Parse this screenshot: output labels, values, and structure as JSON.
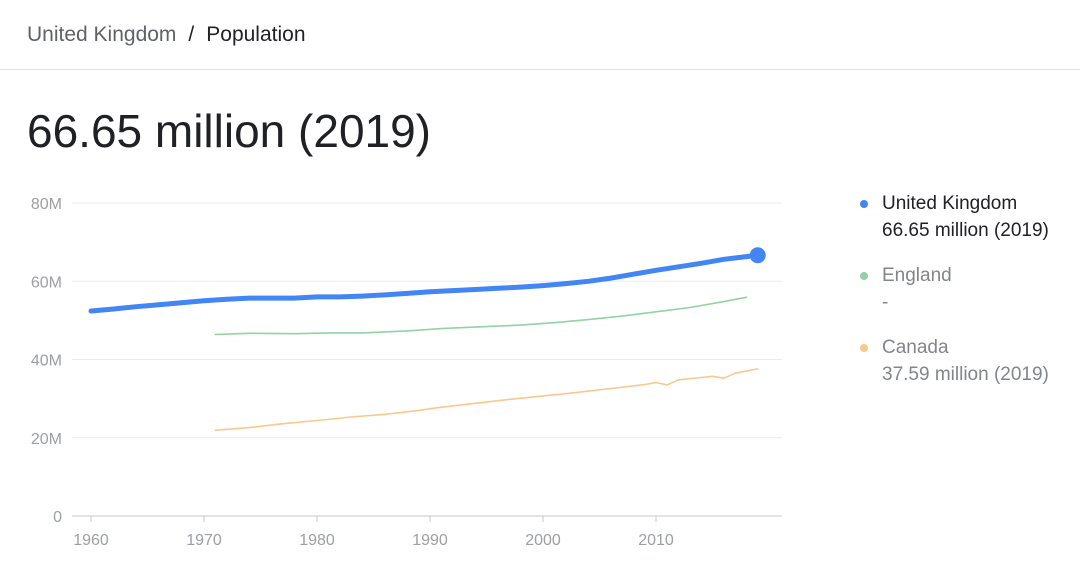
{
  "breadcrumb": {
    "parent": "United Kingdom",
    "separator": "/",
    "current": "Population"
  },
  "headline": "66.65 million (2019)",
  "legend": [
    {
      "name": "United Kingdom",
      "value": "66.65 million (2019)",
      "color": "#4285f4"
    },
    {
      "name": "England",
      "value": "-",
      "color": "#93d2a3"
    },
    {
      "name": "Canada",
      "value": "37.59 million (2019)",
      "color": "#f8c98c"
    }
  ],
  "chart_data": {
    "type": "line",
    "ylim": [
      0,
      80
    ],
    "xlim": [
      1960,
      2019
    ],
    "yticks": [
      {
        "value": 0,
        "label": "0"
      },
      {
        "value": 20,
        "label": "20M"
      },
      {
        "value": 40,
        "label": "40M"
      },
      {
        "value": 60,
        "label": "60M"
      },
      {
        "value": 80,
        "label": "80M"
      }
    ],
    "xticks": [
      1960,
      1970,
      1980,
      1990,
      2000,
      2010
    ],
    "grid": true,
    "legend_position": "right",
    "series": [
      {
        "name": "United Kingdom",
        "color": "#4285f4",
        "highlight_last": true,
        "x": [
          1960,
          1962,
          1964,
          1966,
          1968,
          1970,
          1972,
          1974,
          1976,
          1978,
          1980,
          1982,
          1984,
          1986,
          1988,
          1990,
          1992,
          1994,
          1996,
          1998,
          2000,
          2002,
          2004,
          2006,
          2008,
          2010,
          2012,
          2014,
          2016,
          2018,
          2019
        ],
        "values": [
          52.4,
          52.9,
          53.5,
          54.0,
          54.5,
          55.0,
          55.4,
          55.7,
          55.7,
          55.7,
          56.0,
          56.0,
          56.2,
          56.5,
          56.9,
          57.3,
          57.6,
          57.9,
          58.2,
          58.5,
          58.9,
          59.4,
          60.0,
          60.8,
          61.8,
          62.8,
          63.7,
          64.6,
          65.6,
          66.3,
          66.65
        ]
      },
      {
        "name": "England",
        "color": "#93d2a3",
        "x": [
          1971,
          1974,
          1978,
          1981,
          1984,
          1988,
          1991,
          1995,
          1998,
          2001,
          2004,
          2007,
          2010,
          2013,
          2016,
          2018
        ],
        "values": [
          46.4,
          46.7,
          46.6,
          46.8,
          46.8,
          47.3,
          47.9,
          48.4,
          48.8,
          49.4,
          50.2,
          51.1,
          52.2,
          53.3,
          54.8,
          55.9
        ]
      },
      {
        "name": "Canada",
        "color": "#f8c98c",
        "x": [
          1971,
          1974,
          1977,
          1980,
          1983,
          1986,
          1989,
          1991,
          1994,
          1997,
          2000,
          2003,
          2006,
          2009,
          2010,
          2011,
          2012,
          2014,
          2015,
          2016,
          2017,
          2019
        ],
        "values": [
          21.9,
          22.6,
          23.6,
          24.4,
          25.3,
          26.0,
          27.0,
          27.8,
          28.8,
          29.8,
          30.7,
          31.6,
          32.6,
          33.6,
          34.1,
          33.5,
          34.8,
          35.4,
          35.7,
          35.2,
          36.5,
          37.59
        ]
      }
    ]
  }
}
